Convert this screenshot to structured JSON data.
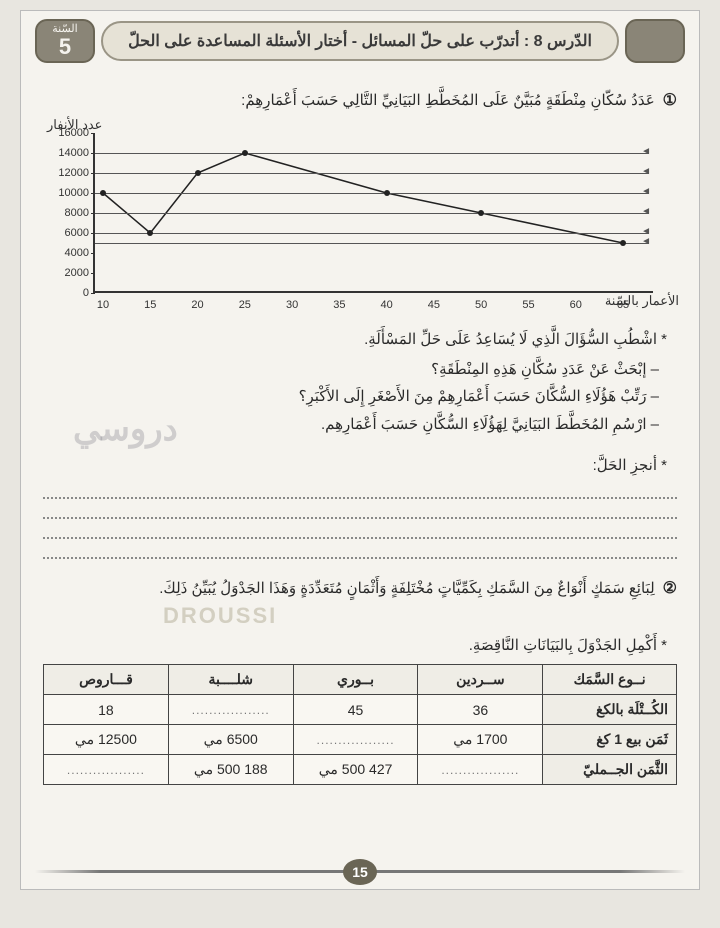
{
  "header": {
    "lesson_label": "الدّرس 8 : أتدرّب على حلّ المسائل - أختار الأسئلة المساعدة على الحلّ",
    "grade_label": "السّنة",
    "grade_number": "5"
  },
  "q1": {
    "num": "①",
    "text": "عَدَدُ سُكّانِ مِنْطَقَةٍ مُبَيَّنٌ عَلَى المُخَطَّطِ البَيَانِيِّ التَّالِي حَسَبَ أَعْمَارِهِمْ:",
    "chart": {
      "type": "line",
      "y_label": "عدد الأنفار",
      "x_label": "الأعمار بالسّنة",
      "ylim": [
        0,
        16000
      ],
      "ytick_step": 2000,
      "xlim": [
        10,
        65
      ],
      "xtick_step": 5,
      "points": [
        {
          "x": 10,
          "y": 10000
        },
        {
          "x": 15,
          "y": 6000
        },
        {
          "x": 20,
          "y": 12000
        },
        {
          "x": 25,
          "y": 14000
        },
        {
          "x": 40,
          "y": 10000
        },
        {
          "x": 50,
          "y": 8000
        },
        {
          "x": 65,
          "y": 5000
        }
      ],
      "arrow_y_values": [
        14000,
        12000,
        10000,
        8000,
        6000,
        5000
      ],
      "background_color": "#f5f3ee",
      "axis_color": "#333333",
      "line_color": "#222222",
      "point_color": "#222222"
    },
    "instruction": "* اشْطُبِ السُّؤَالَ الَّذِي لَا يُسَاعِدُ عَلَى حَلِّ المَسْأَلَةِ.",
    "bullets": [
      "– إبْحَثْ عَنْ عَدَدِ سُكَّانِ هَذِهِ المِنْطَقَةِ؟",
      "– رَتِّبْ هَؤُلَاءِ السُّكَّانَ حَسَبَ أَعْمَارِهِمْ مِنَ الأَصْغَرِ إِلَى الأَكْبَرِ؟",
      "– ارْسُمِ المُخَطَّطَ البَيَانِيَّ لِهَؤُلَاءِ السُّكَّانِ حَسَبَ أَعْمَارِهِم."
    ],
    "solve_label": "* أنجزِ الحَلَّ:",
    "watermark": "دروسي"
  },
  "q2": {
    "num": "②",
    "text": "لِبَائِعِ سَمَكٍ أَنْوَاعٌ مِنَ السَّمَكِ بِكَمِّيَّاتٍ مُخْتَلِفَةٍ وَأَثْمَانٍ مُتَعَدِّدَةٍ وَهَذَا الجَدْوَلُ يُبَيِّنُ ذَلِكَ.",
    "instruction": "* أَكْمِلِ الجَدْوَلَ بِالبَيَانَاتِ النَّاقِصَةِ.",
    "watermark2": "DROUSSI",
    "table": {
      "columns": [
        "نــوع السَّمَك",
        "ســردين",
        "بــوري",
        "شلــــبة",
        "قـــاروص"
      ],
      "rows": [
        {
          "label": "الكُــتْلَة بالكغ",
          "cells": [
            "36",
            "45",
            "..................",
            "18"
          ]
        },
        {
          "label": "ثَمَن بيع 1 كغ",
          "cells": [
            "1700 مي",
            "..................",
            "6500 مي",
            "12500 مي"
          ]
        },
        {
          "label": "الثَّمَن الجــمليّ",
          "cells": [
            "..................",
            "427 500 مي",
            "188 500 مي",
            ".................."
          ]
        }
      ]
    }
  },
  "page_number": "15"
}
